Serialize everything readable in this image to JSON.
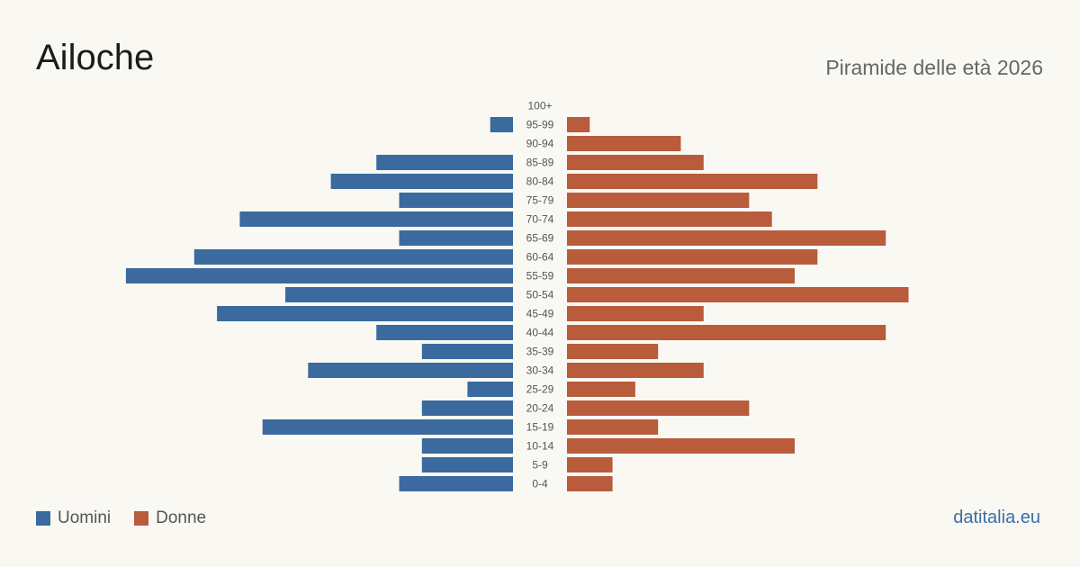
{
  "header": {
    "title": "Ailoche",
    "subtitle": "Piramide delle età 2026"
  },
  "legend": {
    "men_label": "Uomini",
    "women_label": "Donne"
  },
  "footer": {
    "source": "datitalia.eu"
  },
  "colors": {
    "men": "#3a6a9e",
    "women": "#b85c3c"
  },
  "chart_data": {
    "type": "bar",
    "orientation": "horizontal-pyramid",
    "title": "Ailoche",
    "subtitle": "Piramide delle età 2026",
    "categories": [
      "100+",
      "95-99",
      "90-94",
      "85-89",
      "80-84",
      "75-79",
      "70-74",
      "65-69",
      "60-64",
      "55-59",
      "50-54",
      "45-49",
      "40-44",
      "35-39",
      "30-34",
      "25-29",
      "20-24",
      "15-19",
      "10-14",
      "5-9",
      "0-4"
    ],
    "series": [
      {
        "name": "Uomini",
        "values": [
          0,
          1,
          0,
          6,
          8,
          5,
          12,
          5,
          14,
          17,
          10,
          13,
          6,
          4,
          9,
          2,
          4,
          11,
          4,
          4,
          5
        ]
      },
      {
        "name": "Donne",
        "values": [
          0,
          1,
          5,
          6,
          11,
          8,
          9,
          14,
          11,
          10,
          15,
          6,
          14,
          4,
          6,
          3,
          8,
          4,
          10,
          2,
          2
        ]
      }
    ],
    "legend_position": "bottom-left",
    "grid": false
  }
}
